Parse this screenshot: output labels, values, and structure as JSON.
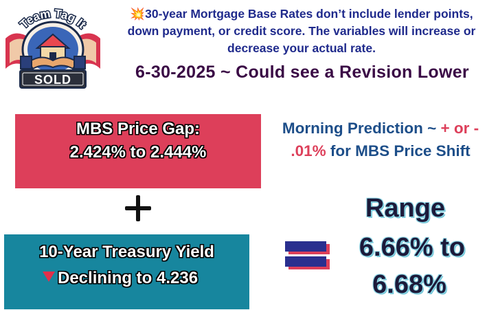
{
  "logo": {
    "name_text": "Team Tag It",
    "sold_text": "SOLD"
  },
  "header": {
    "burst_icon": "💥",
    "disclaimer_line1": "30-year Mortgage Base Rates don’t include lender points,",
    "disclaimer_line2": "down payment, or credit score. The variables will increase or",
    "disclaimer_line3": "decrease your actual rate.",
    "date_headline": "6-30-2025 ~ Could see a Revision Lower"
  },
  "mbs": {
    "title": "MBS Price Gap:",
    "range": "2.424% to 2.444%"
  },
  "prediction": {
    "part1": "Morning Prediction ~ ",
    "accent1": "+ or -",
    "accent2": ".01%",
    "part2": " for MBS Price Shift"
  },
  "treasury": {
    "title": "10-Year Treasury Yield",
    "status": "Declining  to 4.236"
  },
  "range": {
    "title": "Range",
    "low": "6.66% to",
    "high": "6.68%"
  },
  "colors": {
    "mbs_box": "#dd3f5a",
    "treasury_box": "#17869e",
    "headline_blue": "#1f2a8c",
    "prediction_blue": "#1d4e89",
    "accent_red": "#dd3f5a"
  }
}
